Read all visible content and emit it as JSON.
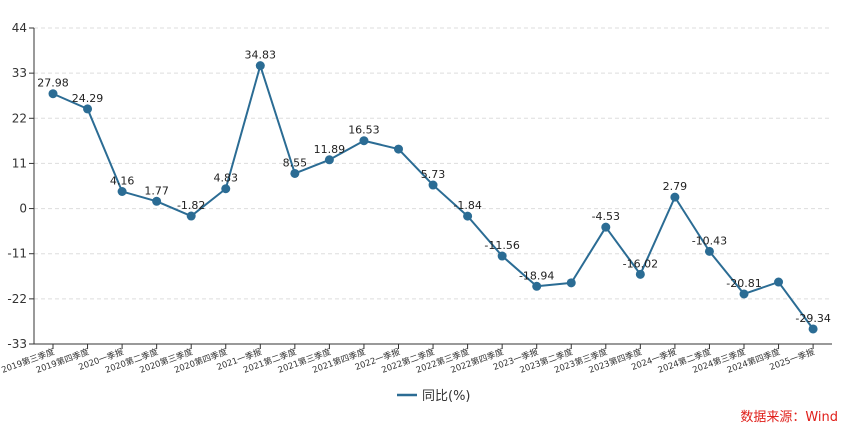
{
  "chart_data": {
    "type": "line",
    "categories": [
      "2019第三季度",
      "2019第四季度",
      "2020一季报",
      "2020第二季度",
      "2020第三季度",
      "2020第四季度",
      "2021一季报",
      "2021第二季度",
      "2021第三季度",
      "2021第四季度",
      "2022一季报",
      "2022第二季度",
      "2022第三季度",
      "2022第四季度",
      "2023一季报",
      "2023第二季度",
      "2023第三季度",
      "2023第四季度",
      "2024一季报",
      "2024第二季度",
      "2024第三季度",
      "2024第四季度",
      "2025一季报"
    ],
    "series": [
      {
        "name": "同比(%)",
        "values": [
          27.98,
          24.29,
          4.16,
          1.77,
          -1.82,
          4.83,
          34.83,
          8.55,
          11.89,
          16.53,
          14.5,
          5.73,
          -1.84,
          -11.56,
          -18.94,
          -18.1,
          -4.53,
          -16.02,
          2.79,
          -10.43,
          -20.81,
          -17.9,
          -29.34
        ],
        "labels": [
          "27.98",
          "24.29",
          "4.16",
          "1.77",
          "-1.82",
          "4.83",
          "34.83",
          "8.55",
          "11.89",
          "16.53",
          "",
          "5.73",
          "-1.84",
          "-11.56",
          "-18.94",
          "",
          "-4.53",
          "-16.02",
          "2.79",
          "-10.43",
          "-20.81",
          "",
          "-29.34"
        ]
      }
    ],
    "yticks": [
      44,
      33,
      22,
      11,
      0,
      -11,
      -22,
      -33
    ],
    "ylim": [
      -33,
      44
    ],
    "grid": true,
    "legend_position": "bottom-center",
    "colors": {
      "line": "#2b6c94",
      "marker": "#2b6c94",
      "grid": "#dddddd",
      "axis": "#333333"
    }
  },
  "source": {
    "text": "数据来源：Wind",
    "color": "#e0201b"
  }
}
